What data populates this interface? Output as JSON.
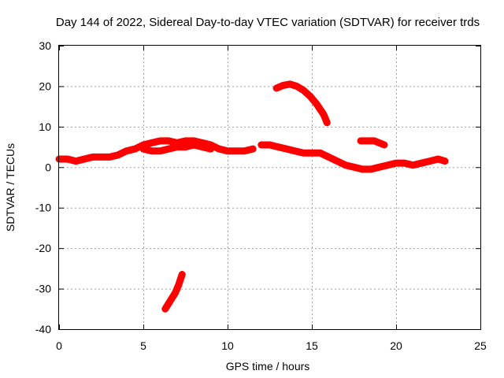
{
  "chart_data": {
    "type": "scatter",
    "title": "Day 144 of 2022, Sidereal Day-to-day VTEC variation (SDTVAR) for receiver trds",
    "xlabel": "GPS time / hours",
    "ylabel": "SDTVAR / TECUs",
    "xlim": [
      0,
      25
    ],
    "ylim": [
      -40,
      30
    ],
    "xticks": [
      0,
      5,
      10,
      15,
      20,
      25
    ],
    "yticks": [
      -40,
      -30,
      -20,
      -10,
      0,
      10,
      20,
      30
    ],
    "grid": true,
    "marker": "+",
    "color": "#ff0000",
    "series": [
      {
        "name": "main",
        "x": [
          0.0,
          0.5,
          1.0,
          1.5,
          2.0,
          2.5,
          3.0,
          3.5,
          4.0,
          4.5,
          5.0,
          5.5,
          6.0,
          6.5,
          7.0,
          7.5,
          8.0,
          8.5,
          9.0,
          9.5,
          10.0,
          10.5,
          11.0,
          11.5
        ],
        "y": [
          2.0,
          2.0,
          1.5,
          2.0,
          2.5,
          2.5,
          2.5,
          3.0,
          4.0,
          4.5,
          5.5,
          6.0,
          6.5,
          6.5,
          6.0,
          6.5,
          6.5,
          6.0,
          5.5,
          4.5,
          4.0,
          4.0,
          4.0,
          4.5
        ]
      },
      {
        "name": "main-lower",
        "x": [
          5.0,
          5.5,
          6.0,
          6.5,
          7.0,
          7.5,
          8.0,
          8.5,
          9.0
        ],
        "y": [
          4.5,
          4.0,
          4.0,
          4.5,
          5.0,
          5.0,
          5.5,
          5.0,
          4.5
        ]
      },
      {
        "name": "main-right",
        "x": [
          12.0,
          12.5,
          13.0,
          13.5,
          14.0,
          14.5,
          15.0,
          15.5,
          16.0,
          16.5,
          17.0,
          17.5,
          18.0,
          18.5,
          19.0,
          19.5,
          20.0,
          20.5,
          21.0,
          21.5,
          22.0,
          22.5,
          22.9
        ],
        "y": [
          5.5,
          5.5,
          5.0,
          4.5,
          4.0,
          3.5,
          3.5,
          3.5,
          2.5,
          1.5,
          0.5,
          0.0,
          -0.5,
          -0.5,
          0.0,
          0.5,
          1.0,
          1.0,
          0.5,
          1.0,
          1.5,
          2.0,
          1.5
        ]
      },
      {
        "name": "arc-high",
        "x": [
          12.9,
          13.3,
          13.7,
          14.1,
          14.5,
          14.9,
          15.3,
          15.7,
          15.9
        ],
        "y": [
          19.5,
          20.2,
          20.5,
          20.0,
          19.0,
          17.5,
          15.5,
          13.0,
          11.0
        ]
      },
      {
        "name": "short-segment",
        "x": [
          17.9,
          18.3,
          18.7,
          19.0,
          19.3
        ],
        "y": [
          6.5,
          6.5,
          6.5,
          6.0,
          5.5
        ]
      },
      {
        "name": "arc-low",
        "x": [
          6.3,
          6.6,
          6.9,
          7.1,
          7.3
        ],
        "y": [
          -35.0,
          -33.0,
          -31.0,
          -29.0,
          -26.5
        ]
      }
    ]
  }
}
